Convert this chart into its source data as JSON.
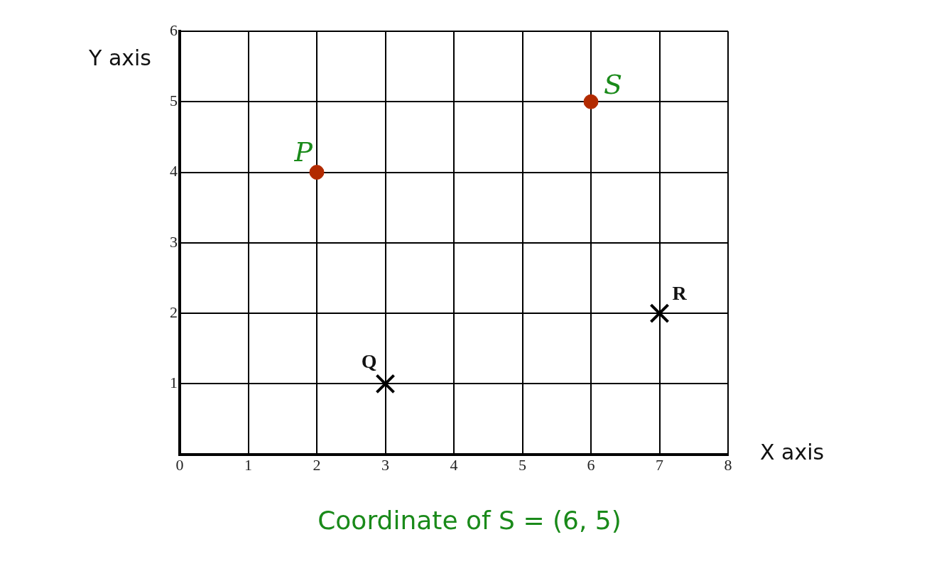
{
  "chart_data": {
    "type": "scatter",
    "xlabel": "X axis",
    "ylabel": "Y axis",
    "xlim": [
      0,
      8
    ],
    "ylim": [
      0,
      6
    ],
    "xticks": [
      0,
      1,
      2,
      3,
      4,
      5,
      6,
      7,
      8
    ],
    "yticks": [
      {
        "value": 0,
        "label": null
      },
      1,
      2,
      3,
      4,
      5,
      6
    ],
    "grid": true,
    "series": [
      {
        "color": "#b22a00",
        "marker": "circle",
        "x": [
          2,
          6
        ],
        "values": [
          4,
          5
        ]
      },
      {
        "color": "#000000",
        "marker": "cross",
        "x": [
          3,
          7
        ],
        "values": [
          1,
          2
        ]
      }
    ],
    "annotations": [
      {
        "text": "P",
        "x": 2,
        "y": 4
      },
      {
        "text": "S",
        "x": 6,
        "y": 5
      },
      {
        "text": "Q",
        "x": 3,
        "y": 1
      },
      {
        "text": "R",
        "x": 7,
        "y": 2
      },
      "Coordinate of S = (6, 5)"
    ]
  }
}
